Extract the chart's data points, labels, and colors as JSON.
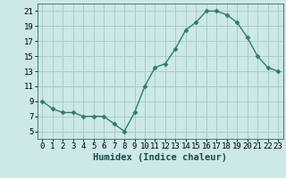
{
  "x": [
    0,
    1,
    2,
    3,
    4,
    5,
    6,
    7,
    8,
    9,
    10,
    11,
    12,
    13,
    14,
    15,
    16,
    17,
    18,
    19,
    20,
    21,
    22,
    23
  ],
  "y": [
    9,
    8,
    7.5,
    7.5,
    7,
    7,
    7,
    6,
    5,
    7.5,
    11,
    13.5,
    14,
    16,
    18.5,
    19.5,
    21,
    21,
    20.5,
    19.5,
    17.5,
    15,
    13.5,
    13
  ],
  "line_color": "#2e7d6e",
  "marker": "D",
  "marker_size": 2.5,
  "bg_color": "#cce8e8",
  "grid_color": "#aacccc",
  "xlabel": "Humidex (Indice chaleur)",
  "xlim": [
    -0.5,
    23.5
  ],
  "ylim": [
    4,
    22
  ],
  "yticks": [
    5,
    7,
    9,
    11,
    13,
    15,
    17,
    19,
    21
  ],
  "xticks": [
    0,
    1,
    2,
    3,
    4,
    5,
    6,
    7,
    8,
    9,
    10,
    11,
    12,
    13,
    14,
    15,
    16,
    17,
    18,
    19,
    20,
    21,
    22,
    23
  ],
  "label_fontsize": 7.5,
  "tick_fontsize": 6.5
}
